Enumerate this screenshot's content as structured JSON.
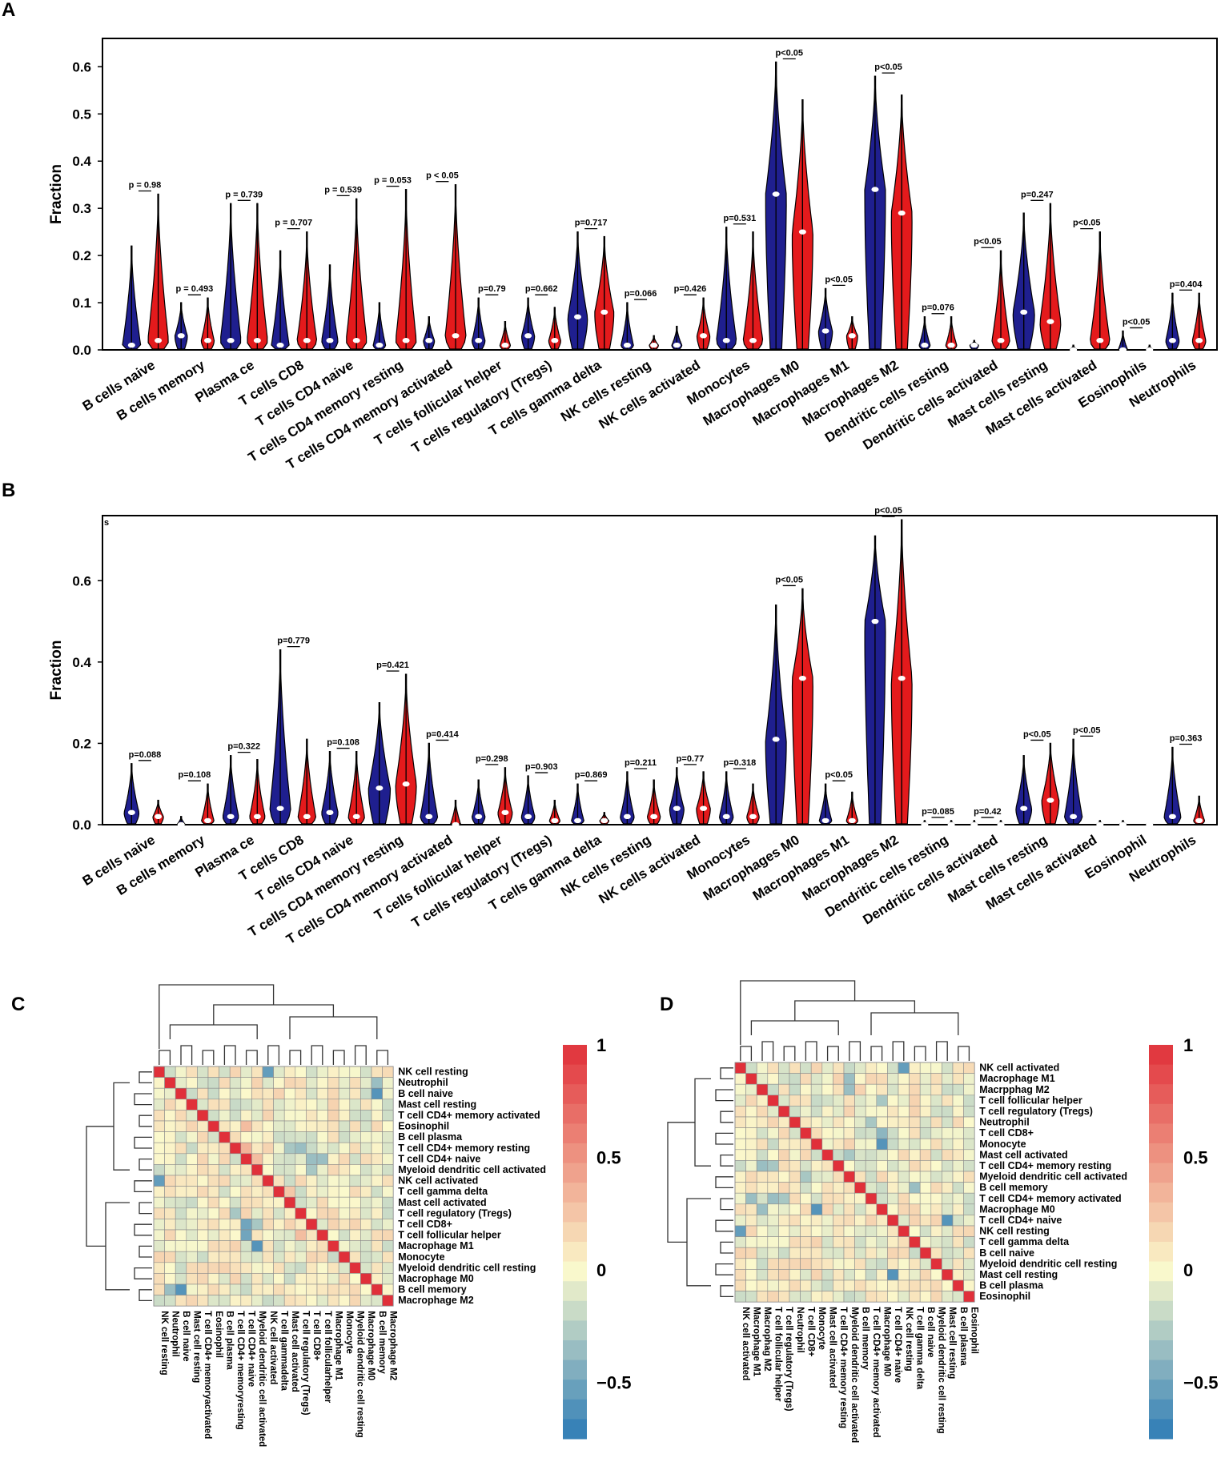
{
  "colors": {
    "control": "#1f1f8f",
    "disease": "#e41a1c",
    "frame": "#000000",
    "heat_pos": "#e0303a",
    "heat_mid": "#fbf9cc",
    "heat_neg": "#2c7bb6"
  },
  "chart_data": [
    {
      "panel": "A",
      "type": "violin",
      "ylabel": "Fraction",
      "ylim": [
        0,
        0.66
      ],
      "yticks": [
        "0.0",
        "0.1",
        "0.2",
        "0.3",
        "0.4",
        "0.5",
        "0.6"
      ],
      "ytick_values": [
        0,
        0.1,
        0.2,
        0.3,
        0.4,
        0.5,
        0.6
      ],
      "corner_mark": "",
      "categories": [
        "B cells naive",
        "B cells memory",
        "Plasma ce",
        "T cells CD8",
        "T cells CD4 naive",
        "T cells CD4 memory resting",
        "T cells CD4 memory activated",
        "T cells follicular helper",
        "T cells regulatory (Tregs)",
        "T cells gamma delta",
        "NK cells resting",
        "NK cells activated",
        "Monocytes",
        "Macrophages M0",
        "Macrophages M1",
        "Macrophages M2",
        "Dendritic cells resting",
        "Dendritic cells activated",
        "Mast cells resting",
        "Mast cells activated",
        "Eosinophils",
        "Neutrophils"
      ],
      "pvalues": [
        "p = 0.98",
        "p = 0.493",
        "p = 0.739",
        "p = 0.707",
        "p = 0.539",
        "p = 0.053",
        "p < 0.05",
        "p=0.79",
        "p=0.662",
        "p=0.717",
        "p=0.066",
        "p=0.426",
        "p=0.531",
        "p<0.05",
        "p<0.05",
        "p<0.05",
        "p=0.076",
        "p<0.05",
        "p=0.247",
        "p<0.05",
        "p<0.05",
        "p=0.404"
      ],
      "series": [
        {
          "name": "control",
          "max": [
            0.22,
            0.1,
            0.31,
            0.21,
            0.18,
            0.1,
            0.07,
            0.11,
            0.11,
            0.25,
            0.1,
            0.05,
            0.26,
            0.61,
            0.13,
            0.58,
            0.07,
            0.02,
            0.29,
            0.01,
            0.04,
            0.12
          ],
          "median": [
            0.01,
            0.03,
            0.02,
            0.01,
            0.02,
            0.01,
            0.02,
            0.02,
            0.03,
            0.07,
            0.01,
            0.01,
            0.02,
            0.33,
            0.04,
            0.34,
            0.01,
            0.01,
            0.08,
            0.0,
            0.0,
            0.02
          ]
        },
        {
          "name": "disease",
          "max": [
            0.33,
            0.11,
            0.31,
            0.25,
            0.32,
            0.34,
            0.35,
            0.06,
            0.09,
            0.24,
            0.03,
            0.11,
            0.25,
            0.53,
            0.07,
            0.54,
            0.07,
            0.21,
            0.31,
            0.25,
            0.01,
            0.12
          ],
          "median": [
            0.02,
            0.02,
            0.02,
            0.02,
            0.02,
            0.02,
            0.03,
            0.01,
            0.02,
            0.08,
            0.01,
            0.03,
            0.02,
            0.25,
            0.03,
            0.29,
            0.01,
            0.02,
            0.06,
            0.02,
            0.0,
            0.02
          ]
        }
      ]
    },
    {
      "panel": "B",
      "type": "violin",
      "ylabel": "Fraction",
      "ylim": [
        0,
        0.76
      ],
      "yticks": [
        "0.0",
        "0.2",
        "0.4",
        "0.6"
      ],
      "ytick_values": [
        0,
        0.2,
        0.4,
        0.6
      ],
      "corner_mark": "s",
      "categories": [
        "B cells naive",
        "B cells memory",
        "Plasma ce",
        "T cells CD8",
        "T cells CD4 naive",
        "T cells CD4 memory resting",
        "T cells CD4 memory activated",
        "T cells follicular helper",
        "T cells regulatory (Tregs)",
        "T cells gamma delta",
        "NK cells resting",
        "NK cells activated",
        "Monocytes",
        "Macrophages M0",
        "Macrophages M1",
        "Macrophages M2",
        "Dendritic cells resting",
        "Dendritic cells activated",
        "Mast cells resting",
        "Mast cells activated",
        "Eosinophil",
        "Neutrophils"
      ],
      "pvalues": [
        "p=0.088",
        "p=0.108",
        "p=0.322",
        "p=0.779",
        "p=0.108",
        "p=0.421",
        "p=0.414",
        "p=0.298",
        "p=0.903",
        "p=0.869",
        "p=0.211",
        "p=0.77",
        "p=0.318",
        "p<0.05",
        "p<0.05",
        "p<0.05",
        "p=0.085",
        "p=0.42",
        "p<0.05",
        "p<0.05",
        "",
        "p=0.363"
      ],
      "series": [
        {
          "name": "control",
          "max": [
            0.15,
            0.02,
            0.17,
            0.43,
            0.18,
            0.3,
            0.2,
            0.11,
            0.12,
            0.1,
            0.13,
            0.14,
            0.13,
            0.54,
            0.1,
            0.71,
            0.01,
            0.01,
            0.17,
            0.21,
            0.01,
            0.19
          ],
          "median": [
            0.03,
            0.0,
            0.02,
            0.04,
            0.03,
            0.09,
            0.02,
            0.02,
            0.02,
            0.01,
            0.02,
            0.04,
            0.02,
            0.21,
            0.01,
            0.5,
            0.0,
            0.0,
            0.04,
            0.02,
            0.0,
            0.02
          ]
        },
        {
          "name": "disease",
          "max": [
            0.06,
            0.1,
            0.16,
            0.21,
            0.18,
            0.37,
            0.06,
            0.14,
            0.06,
            0.03,
            0.11,
            0.13,
            0.1,
            0.58,
            0.08,
            0.75,
            0.01,
            0.01,
            0.2,
            0.01,
            0.0,
            0.07
          ],
          "median": [
            0.02,
            0.01,
            0.02,
            0.02,
            0.02,
            0.1,
            0.0,
            0.03,
            0.01,
            0.01,
            0.02,
            0.04,
            0.02,
            0.36,
            0.01,
            0.36,
            0.0,
            0.0,
            0.06,
            0.0,
            0.0,
            0.01
          ]
        }
      ]
    },
    {
      "panel": "C",
      "type": "heatmap",
      "row_labels": [
        "NK cell resting",
        "Neutrophil",
        "B cell naive",
        "Mast cell resting",
        "T cell CD4+ memory activated",
        "Eosinophil",
        "B cell plasma",
        "T cell CD4+ memory resting",
        "T cell CD4+ naive",
        "Myeloid dendritic cell activated",
        "NK cell activated",
        "T cell gamma delta",
        "Mast cell activated",
        "T cell regulatory (Tregs)",
        "T cell CD8+",
        "T cell follicular helper",
        "Macrophage M1",
        "Monocyte",
        "Myeloid dendritic cell resting",
        "Macrophage M0",
        "B cell memory",
        "Macrophage M2"
      ],
      "col_labels": [
        "NK cell resting",
        "Neutrophil",
        "B cell naive",
        "Mast cell resting",
        "T cell CD4+ memoryactivated",
        "Eosinophil",
        "B cell plasma",
        "T cell CD4+ memoryresting",
        "T cell CD4+ naive",
        "Myeloid dendritic cell activated",
        "NK cell activated",
        "T cell gammadelta",
        "Mast cell activated",
        "T cell regulatory (Tregs)",
        "T cell CD8+",
        "T cell follicularhelper",
        "Macrophage M1",
        "Monocyte",
        "Myeloid dendritic cell resting",
        "Macrophage M0",
        "B cell memory",
        "Macrophage M2"
      ],
      "diagonal": 1,
      "notable": [
        [
          0,
          10,
          -0.55
        ],
        [
          2,
          20,
          -0.6
        ],
        [
          1,
          20,
          -0.35
        ],
        [
          8,
          14,
          -0.35
        ],
        [
          8,
          15,
          -0.35
        ],
        [
          7,
          12,
          -0.3
        ],
        [
          7,
          13,
          -0.35
        ],
        [
          9,
          14,
          -0.3
        ],
        [
          7,
          8,
          0.35
        ],
        [
          8,
          9,
          0.3
        ],
        [
          5,
          8,
          0.3
        ],
        [
          10,
          0,
          -0.55
        ],
        [
          14,
          8,
          -0.5
        ],
        [
          15,
          8,
          -0.5
        ],
        [
          16,
          9,
          -0.6
        ],
        [
          13,
          7,
          -0.3
        ],
        [
          20,
          2,
          -0.6
        ],
        [
          20,
          1,
          -0.35
        ],
        [
          14,
          9,
          -0.3
        ],
        [
          11,
          12,
          0.25
        ],
        [
          15,
          13,
          0.3
        ]
      ],
      "colorbar_ticks": [
        "1",
        "0.5",
        "0",
        "−0.5"
      ],
      "colorbar_tick_values": [
        1,
        0.5,
        0,
        -0.5
      ],
      "colorbar_range": [
        -0.75,
        1
      ]
    },
    {
      "panel": "D",
      "type": "heatmap",
      "row_labels": [
        "NK cell activated",
        "Macrophage M1",
        "Macrpphag M2",
        "T cell follicular helper",
        "T cell regulatory (Tregs)",
        "Neutrophil",
        "T cell CD8+",
        "Monocyte",
        "Mast cell activated",
        "T cell CD4+ memory resting",
        "Myeloid dendritic cell activated",
        "B cell memory",
        "T cell CD4+ memory activated",
        "Macrophage M0",
        "T cell CD4+ naive",
        "NK cell resting",
        "T cell gamma delta",
        "B cell naive",
        "Myeloid dendritic cell resting",
        "Mast cell resting",
        "B cell plasma",
        "Eosinophil"
      ],
      "col_labels": [
        "NK cell activated",
        "Macrophage M1",
        "Macrophag M2",
        "T cell follicular helper",
        "T cell regulatory (Tregs)",
        "Neutrophil",
        "T cell CD8+",
        "Monocyte",
        "Mast cell activated",
        "T cell CD4+ memory resting",
        "Myeloid dendritic cell activated",
        "B cell memory",
        "T cell CD4+ memory activated",
        "Macrophage M0",
        "T cell CD4+ naive",
        "NK cell resting",
        "T cell gamma delta",
        "B cell naive",
        "Myeloid dendritic cell resting",
        "Mast cell resting",
        "B cell plasma",
        "Eosinophil"
      ],
      "diagonal": 1,
      "notable": [
        [
          0,
          15,
          -0.55
        ],
        [
          15,
          0,
          -0.55
        ],
        [
          14,
          19,
          -0.6
        ],
        [
          19,
          14,
          -0.6
        ],
        [
          7,
          13,
          -0.6
        ],
        [
          13,
          7,
          -0.6
        ],
        [
          1,
          10,
          -0.35
        ],
        [
          2,
          10,
          -0.35
        ],
        [
          6,
          13,
          -0.4
        ],
        [
          3,
          13,
          -0.3
        ],
        [
          9,
          2,
          -0.35
        ],
        [
          9,
          3,
          -0.3
        ],
        [
          12,
          1,
          -0.35
        ],
        [
          12,
          3,
          -0.35
        ],
        [
          12,
          4,
          -0.3
        ],
        [
          13,
          2,
          -0.35
        ],
        [
          11,
          16,
          -0.35
        ],
        [
          5,
          12,
          -0.3
        ],
        [
          10,
          6,
          -0.3
        ],
        [
          8,
          10,
          -0.3
        ]
      ],
      "colorbar_ticks": [
        "1",
        "0.5",
        "0",
        "−0.5"
      ],
      "colorbar_tick_values": [
        1,
        0.5,
        0,
        -0.5
      ],
      "colorbar_range": [
        -0.75,
        1
      ]
    }
  ]
}
